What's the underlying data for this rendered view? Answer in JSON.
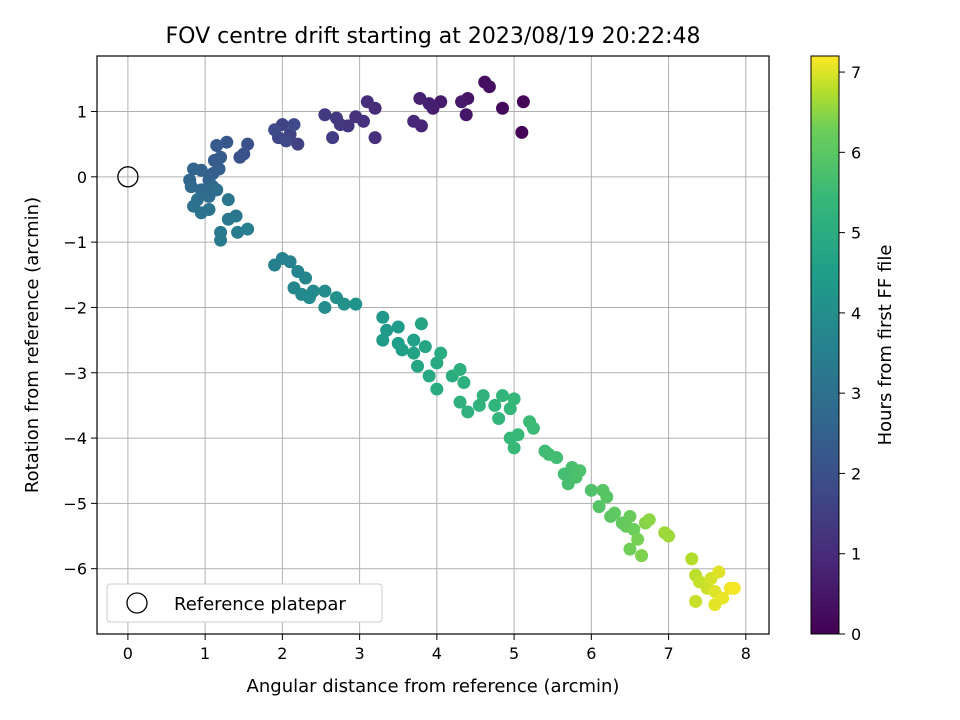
{
  "chart_data": {
    "type": "scatter",
    "title": "FOV centre drift starting at 2023/08/19 20:22:48",
    "xlabel": "Angular distance from reference (arcmin)",
    "ylabel": "Rotation from reference (arcmin)",
    "xlim": [
      -0.4,
      8.3
    ],
    "ylim": [
      -7.0,
      1.85
    ],
    "xticks": [
      "0",
      "1",
      "2",
      "3",
      "4",
      "5",
      "6",
      "7",
      "8"
    ],
    "yticks": [
      "1",
      "0",
      "−1",
      "−2",
      "−3",
      "−4",
      "−5",
      "−6"
    ],
    "grid": true,
    "legend": {
      "position": "lower-left",
      "entries": [
        "Reference platepar"
      ]
    },
    "reference_point": {
      "x": 0,
      "y": 0
    },
    "colorbar": {
      "label": "Hours from first FF file",
      "range": [
        0,
        7.2
      ],
      "ticks": [
        "0",
        "1",
        "2",
        "3",
        "4",
        "5",
        "6",
        "7"
      ],
      "colormap": "viridis"
    },
    "series": [
      {
        "color_by": "hours",
        "points": [
          {
            "x": 5.1,
            "y": 0.68,
            "c": 0.05
          },
          {
            "x": 5.12,
            "y": 1.15,
            "c": 0.1
          },
          {
            "x": 4.85,
            "y": 1.05,
            "c": 0.2
          },
          {
            "x": 4.62,
            "y": 1.45,
            "c": 0.3
          },
          {
            "x": 4.68,
            "y": 1.38,
            "c": 0.35
          },
          {
            "x": 4.4,
            "y": 1.2,
            "c": 0.45
          },
          {
            "x": 4.38,
            "y": 0.95,
            "c": 0.5
          },
          {
            "x": 4.32,
            "y": 1.15,
            "c": 0.55
          },
          {
            "x": 4.05,
            "y": 1.15,
            "c": 0.6
          },
          {
            "x": 3.95,
            "y": 1.05,
            "c": 0.65
          },
          {
            "x": 3.9,
            "y": 1.12,
            "c": 0.7
          },
          {
            "x": 3.78,
            "y": 1.2,
            "c": 0.75
          },
          {
            "x": 3.8,
            "y": 0.78,
            "c": 0.85
          },
          {
            "x": 3.7,
            "y": 0.85,
            "c": 0.9
          },
          {
            "x": 3.2,
            "y": 1.05,
            "c": 1.0
          },
          {
            "x": 3.1,
            "y": 1.15,
            "c": 1.05
          },
          {
            "x": 3.2,
            "y": 0.6,
            "c": 1.1
          },
          {
            "x": 3.05,
            "y": 0.85,
            "c": 1.15
          },
          {
            "x": 2.95,
            "y": 0.92,
            "c": 1.2
          },
          {
            "x": 2.85,
            "y": 0.78,
            "c": 1.25
          },
          {
            "x": 2.75,
            "y": 0.8,
            "c": 1.3
          },
          {
            "x": 2.7,
            "y": 0.9,
            "c": 1.35
          },
          {
            "x": 2.55,
            "y": 0.95,
            "c": 1.4
          },
          {
            "x": 2.65,
            "y": 0.6,
            "c": 1.45
          },
          {
            "x": 2.2,
            "y": 0.5,
            "c": 1.55
          },
          {
            "x": 2.1,
            "y": 0.65,
            "c": 1.6
          },
          {
            "x": 2.0,
            "y": 0.8,
            "c": 1.65
          },
          {
            "x": 1.95,
            "y": 0.6,
            "c": 1.7
          },
          {
            "x": 2.05,
            "y": 0.55,
            "c": 1.75
          },
          {
            "x": 2.15,
            "y": 0.8,
            "c": 1.8
          },
          {
            "x": 1.9,
            "y": 0.72,
            "c": 1.85
          },
          {
            "x": 1.55,
            "y": 0.5,
            "c": 2.0
          },
          {
            "x": 1.5,
            "y": 0.35,
            "c": 2.05
          },
          {
            "x": 1.45,
            "y": 0.3,
            "c": 2.1
          },
          {
            "x": 1.28,
            "y": 0.53,
            "c": 2.2
          },
          {
            "x": 1.15,
            "y": 0.48,
            "c": 2.25
          },
          {
            "x": 1.2,
            "y": 0.3,
            "c": 2.3
          },
          {
            "x": 1.12,
            "y": 0.25,
            "c": 2.35
          },
          {
            "x": 1.18,
            "y": 0.12,
            "c": 2.4
          },
          {
            "x": 1.1,
            "y": 0.05,
            "c": 2.45
          },
          {
            "x": 1.05,
            "y": -0.05,
            "c": 2.5
          },
          {
            "x": 0.95,
            "y": 0.1,
            "c": 2.55
          },
          {
            "x": 0.85,
            "y": 0.12,
            "c": 2.6
          },
          {
            "x": 0.8,
            "y": -0.05,
            "c": 2.65
          },
          {
            "x": 0.82,
            "y": -0.15,
            "c": 2.7
          },
          {
            "x": 0.95,
            "y": -0.2,
            "c": 2.75
          },
          {
            "x": 1.1,
            "y": -0.15,
            "c": 2.8
          },
          {
            "x": 1.05,
            "y": -0.3,
            "c": 2.85
          },
          {
            "x": 1.15,
            "y": -0.2,
            "c": 2.9
          },
          {
            "x": 0.9,
            "y": -0.35,
            "c": 2.95
          },
          {
            "x": 0.85,
            "y": -0.45,
            "c": 3.0
          },
          {
            "x": 0.95,
            "y": -0.55,
            "c": 3.05
          },
          {
            "x": 1.05,
            "y": -0.5,
            "c": 3.1
          },
          {
            "x": 1.3,
            "y": -0.35,
            "c": 3.15
          },
          {
            "x": 1.4,
            "y": -0.6,
            "c": 3.2
          },
          {
            "x": 1.3,
            "y": -0.65,
            "c": 3.25
          },
          {
            "x": 1.2,
            "y": -0.85,
            "c": 3.3
          },
          {
            "x": 1.2,
            "y": -0.97,
            "c": 3.35
          },
          {
            "x": 1.42,
            "y": -0.85,
            "c": 3.4
          },
          {
            "x": 1.55,
            "y": -0.8,
            "c": 3.45
          },
          {
            "x": 1.9,
            "y": -1.35,
            "c": 3.5
          },
          {
            "x": 2.0,
            "y": -1.25,
            "c": 3.55
          },
          {
            "x": 2.1,
            "y": -1.3,
            "c": 3.6
          },
          {
            "x": 2.2,
            "y": -1.45,
            "c": 3.65
          },
          {
            "x": 2.3,
            "y": -1.55,
            "c": 3.7
          },
          {
            "x": 2.15,
            "y": -1.7,
            "c": 3.75
          },
          {
            "x": 2.25,
            "y": -1.8,
            "c": 3.8
          },
          {
            "x": 2.4,
            "y": -1.75,
            "c": 3.85
          },
          {
            "x": 2.35,
            "y": -1.85,
            "c": 3.9
          },
          {
            "x": 2.55,
            "y": -1.75,
            "c": 3.95
          },
          {
            "x": 2.55,
            "y": -2.0,
            "c": 4.0
          },
          {
            "x": 2.7,
            "y": -1.85,
            "c": 4.05
          },
          {
            "x": 2.8,
            "y": -1.95,
            "c": 4.1
          },
          {
            "x": 2.95,
            "y": -1.95,
            "c": 4.15
          },
          {
            "x": 3.3,
            "y": -2.15,
            "c": 4.3
          },
          {
            "x": 3.35,
            "y": -2.35,
            "c": 4.35
          },
          {
            "x": 3.3,
            "y": -2.5,
            "c": 4.4
          },
          {
            "x": 3.5,
            "y": -2.3,
            "c": 4.45
          },
          {
            "x": 3.5,
            "y": -2.55,
            "c": 4.5
          },
          {
            "x": 3.55,
            "y": -2.65,
            "c": 4.55
          },
          {
            "x": 3.7,
            "y": -2.5,
            "c": 4.6
          },
          {
            "x": 3.7,
            "y": -2.7,
            "c": 4.65
          },
          {
            "x": 3.8,
            "y": -2.25,
            "c": 4.7
          },
          {
            "x": 3.85,
            "y": -2.6,
            "c": 4.75
          },
          {
            "x": 3.75,
            "y": -2.9,
            "c": 4.8
          },
          {
            "x": 3.9,
            "y": -3.05,
            "c": 4.85
          },
          {
            "x": 4.0,
            "y": -2.85,
            "c": 4.9
          },
          {
            "x": 4.05,
            "y": -2.7,
            "c": 4.95
          },
          {
            "x": 4.0,
            "y": -3.25,
            "c": 5.0
          },
          {
            "x": 4.2,
            "y": -3.05,
            "c": 5.05
          },
          {
            "x": 4.3,
            "y": -2.95,
            "c": 5.1
          },
          {
            "x": 4.35,
            "y": -3.15,
            "c": 5.12
          },
          {
            "x": 4.3,
            "y": -3.45,
            "c": 5.15
          },
          {
            "x": 4.4,
            "y": -3.6,
            "c": 5.18
          },
          {
            "x": 4.55,
            "y": -3.5,
            "c": 5.2
          },
          {
            "x": 4.6,
            "y": -3.35,
            "c": 5.22
          },
          {
            "x": 4.75,
            "y": -3.5,
            "c": 5.25
          },
          {
            "x": 4.8,
            "y": -3.7,
            "c": 5.3
          },
          {
            "x": 4.85,
            "y": -3.35,
            "c": 5.32
          },
          {
            "x": 4.95,
            "y": -3.55,
            "c": 5.35
          },
          {
            "x": 5.0,
            "y": -3.4,
            "c": 5.38
          },
          {
            "x": 4.95,
            "y": -4.0,
            "c": 5.4
          },
          {
            "x": 5.05,
            "y": -3.95,
            "c": 5.42
          },
          {
            "x": 5.0,
            "y": -4.15,
            "c": 5.45
          },
          {
            "x": 5.2,
            "y": -3.75,
            "c": 5.5
          },
          {
            "x": 5.25,
            "y": -3.85,
            "c": 5.52
          },
          {
            "x": 5.4,
            "y": -4.2,
            "c": 5.55
          },
          {
            "x": 5.45,
            "y": -4.25,
            "c": 5.6
          },
          {
            "x": 5.55,
            "y": -4.3,
            "c": 5.62
          },
          {
            "x": 5.65,
            "y": -4.55,
            "c": 5.65
          },
          {
            "x": 5.7,
            "y": -4.7,
            "c": 5.7
          },
          {
            "x": 5.75,
            "y": -4.45,
            "c": 5.72
          },
          {
            "x": 5.8,
            "y": -4.6,
            "c": 5.75
          },
          {
            "x": 5.85,
            "y": -4.5,
            "c": 5.78
          },
          {
            "x": 6.0,
            "y": -4.8,
            "c": 5.85
          },
          {
            "x": 6.1,
            "y": -5.05,
            "c": 5.9
          },
          {
            "x": 6.15,
            "y": -4.8,
            "c": 5.92
          },
          {
            "x": 6.2,
            "y": -4.9,
            "c": 5.95
          },
          {
            "x": 6.25,
            "y": -5.2,
            "c": 6.0
          },
          {
            "x": 6.3,
            "y": -5.15,
            "c": 6.05
          },
          {
            "x": 6.4,
            "y": -5.3,
            "c": 6.1
          },
          {
            "x": 6.45,
            "y": -5.35,
            "c": 6.15
          },
          {
            "x": 6.5,
            "y": -5.2,
            "c": 6.2
          },
          {
            "x": 6.55,
            "y": -5.4,
            "c": 6.25
          },
          {
            "x": 6.5,
            "y": -5.7,
            "c": 6.3
          },
          {
            "x": 6.6,
            "y": -5.55,
            "c": 6.35
          },
          {
            "x": 6.65,
            "y": -5.8,
            "c": 6.4
          },
          {
            "x": 6.7,
            "y": -5.3,
            "c": 6.45
          },
          {
            "x": 6.75,
            "y": -5.25,
            "c": 6.5
          },
          {
            "x": 6.95,
            "y": -5.45,
            "c": 6.6
          },
          {
            "x": 7.0,
            "y": -5.5,
            "c": 6.62
          },
          {
            "x": 7.3,
            "y": -5.85,
            "c": 6.75
          },
          {
            "x": 7.35,
            "y": -6.1,
            "c": 6.8
          },
          {
            "x": 7.4,
            "y": -6.2,
            "c": 6.85
          },
          {
            "x": 7.35,
            "y": -6.5,
            "c": 6.88
          },
          {
            "x": 7.5,
            "y": -6.3,
            "c": 6.9
          },
          {
            "x": 7.55,
            "y": -6.15,
            "c": 6.95
          },
          {
            "x": 7.6,
            "y": -6.35,
            "c": 7.0
          },
          {
            "x": 7.65,
            "y": -6.05,
            "c": 7.02
          },
          {
            "x": 7.6,
            "y": -6.55,
            "c": 7.05
          },
          {
            "x": 7.7,
            "y": -6.45,
            "c": 7.08
          },
          {
            "x": 7.8,
            "y": -6.3,
            "c": 7.12
          },
          {
            "x": 7.85,
            "y": -6.3,
            "c": 7.15
          }
        ]
      }
    ]
  }
}
